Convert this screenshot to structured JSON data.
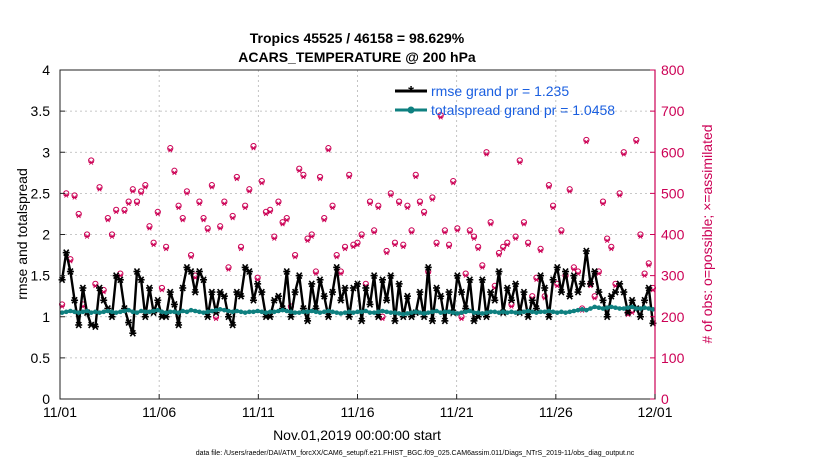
{
  "chart_data": {
    "type": "line",
    "title": "Tropics 45525 / 46158 = 98.629%",
    "subtitle": "ACARS_TEMPERATURE @ 200 hPa",
    "xlabel": "Nov.01,2019 00:00:00 start",
    "ylabel_left": "rmse and totalspread",
    "ylabel_right": "# of obs: o=possible; ×=assimilated",
    "x_ticks": [
      "11/01",
      "11/06",
      "11/11",
      "11/16",
      "11/21",
      "11/26",
      "12/01"
    ],
    "x_tick_days": [
      0,
      5,
      10,
      15,
      20,
      25,
      30
    ],
    "xlim": [
      0,
      30
    ],
    "ylim_left": [
      0,
      4
    ],
    "y_ticks_left": [
      "0",
      "0.5",
      "1",
      "1.5",
      "2",
      "2.5",
      "3",
      "3.5",
      "4"
    ],
    "ylim_right": [
      0,
      800
    ],
    "y_ticks_right": [
      "0",
      "100",
      "200",
      "300",
      "400",
      "500",
      "600",
      "700",
      "800"
    ],
    "legend_position": "top-right",
    "series": [
      {
        "name": "rmse grand pr = 1.235",
        "color": "#000000",
        "marker": "asterisk",
        "values": [
          1.45,
          1.78,
          1.55,
          1.2,
          0.9,
          1.35,
          1.05,
          0.9,
          0.88,
          1.35,
          1.2,
          1.1,
          1.0,
          1.5,
          1.45,
          1.1,
          0.93,
          0.8,
          1.55,
          1.45,
          1.0,
          1.35,
          1.05,
          1.2,
          1.0,
          1.0,
          1.3,
          1.15,
          0.9,
          1.35,
          1.6,
          1.55,
          1.3,
          1.55,
          1.45,
          1.0,
          1.3,
          1.05,
          1.3,
          1.25,
          1.0,
          0.9,
          1.3,
          1.25,
          1.6,
          1.55,
          1.2,
          1.4,
          1.3,
          1.0,
          1.0,
          1.2,
          1.25,
          1.1,
          1.55,
          1.0,
          1.3,
          1.5,
          1.1,
          0.95,
          1.4,
          1.1,
          1.45,
          1.25,
          1.0,
          1.3,
          1.6,
          1.2,
          1.35,
          1.0,
          1.35,
          1.4,
          0.95,
          1.35,
          1.15,
          1.5,
          1.0,
          1.45,
          1.2,
          1.5,
          0.95,
          1.4,
          1.0,
          1.25,
          1.0,
          1.05,
          1.3,
          1.0,
          1.6,
          0.95,
          1.35,
          1.25,
          0.95,
          1.3,
          1.05,
          1.5,
          1.3,
          1.1,
          1.45,
          0.95,
          1.0,
          1.45,
          1.0,
          1.3,
          1.2,
          1.55,
          1.05,
          1.35,
          1.2,
          1.4,
          1.05,
          1.3,
          1.0,
          1.2,
          1.1,
          1.5,
          1.35,
          1.0,
          1.45,
          1.6,
          1.3,
          1.55,
          1.25,
          1.5,
          1.3,
          1.4,
          1.8,
          1.4,
          1.55,
          1.3,
          1.2,
          1.0,
          1.25,
          1.3,
          1.4,
          1.3,
          1.05,
          1.2,
          1.1,
          1.0,
          1.2,
          1.35,
          0.92
        ]
      },
      {
        "name": "totalspread grand pr = 1.0458",
        "color": "#0f8080",
        "marker": "dot",
        "values": [
          1.05,
          1.06,
          1.07,
          1.06,
          1.05,
          1.06,
          1.07,
          1.05,
          1.06,
          1.05,
          1.06,
          1.07,
          1.06,
          1.05,
          1.06,
          1.07,
          1.08,
          1.06,
          1.05,
          1.07,
          1.06,
          1.06,
          1.07,
          1.08,
          1.06,
          1.05,
          1.06,
          1.06,
          1.05,
          1.07,
          1.06,
          1.08,
          1.07,
          1.06,
          1.05,
          1.06,
          1.07,
          1.08,
          1.09,
          1.08,
          1.07,
          1.06,
          1.07,
          1.06,
          1.05,
          1.06,
          1.06,
          1.07,
          1.06,
          1.05,
          1.06,
          1.06,
          1.07,
          1.08,
          1.07,
          1.06,
          1.05,
          1.05,
          1.06,
          1.06,
          1.07,
          1.06,
          1.05,
          1.06,
          1.07,
          1.06,
          1.05,
          1.04,
          1.05,
          1.06,
          1.05,
          1.06,
          1.06,
          1.07,
          1.05,
          1.05,
          1.06,
          1.07,
          1.06,
          1.05,
          1.05,
          1.04,
          1.03,
          1.04,
          1.05,
          1.06,
          1.05,
          1.04,
          1.05,
          1.06,
          1.07,
          1.05,
          1.06,
          1.06,
          1.05,
          1.04,
          1.05,
          1.06,
          1.07,
          1.05,
          1.05,
          1.04,
          1.05,
          1.06,
          1.06,
          1.05,
          1.06,
          1.05,
          1.06,
          1.05,
          1.05,
          1.06,
          1.07,
          1.06,
          1.05,
          1.06,
          1.06,
          1.07,
          1.06,
          1.05,
          1.06,
          1.05,
          1.06,
          1.07,
          1.08,
          1.09,
          1.08,
          1.1,
          1.12,
          1.11,
          1.1,
          1.11,
          1.12,
          1.11,
          1.1,
          1.1,
          1.11,
          1.12,
          1.1,
          1.1,
          1.11,
          1.1,
          1.09
        ]
      }
    ],
    "obs_series": [
      {
        "name": "possible",
        "marker": "o",
        "color": "#cc0055",
        "axis": "right",
        "values": [
          230,
          500,
          340,
          495,
          450,
          230,
          400,
          580,
          280,
          515,
          265,
          440,
          400,
          460,
          305,
          460,
          480,
          510,
          480,
          505,
          520,
          420,
          380,
          455,
          270,
          370,
          610,
          555,
          470,
          440,
          505,
          350,
          300,
          480,
          440,
          415,
          520,
          200,
          420,
          480,
          320,
          445,
          540,
          370,
          470,
          510,
          615,
          295,
          530,
          455,
          460,
          395,
          480,
          430,
          440,
          225,
          350,
          560,
          545,
          390,
          400,
          310,
          540,
          440,
          610,
          470,
          350,
          310,
          370,
          545,
          375,
          380,
          400,
          280,
          480,
          410,
          470,
          200,
          360,
          500,
          380,
          480,
          375,
          470,
          410,
          545,
          480,
          455,
          310,
          490,
          380,
          690,
          410,
          375,
          530,
          415,
          200,
          305,
          410,
          395,
          370,
          325,
          600,
          430,
          275,
          355,
          370,
          380,
          230,
          395,
          580,
          430,
          380,
          250,
          295,
          365,
          250,
          520,
          470,
          280,
          410,
          300,
          510,
          320,
          310,
          220,
          630,
          280,
          250,
          310,
          480,
          390,
          370,
          280,
          500,
          600,
          210,
          215,
          630,
          400,
          305,
          330,
          270
        ]
      },
      {
        "name": "assimilated",
        "marker": "x",
        "color": "#cc0055",
        "axis": "right",
        "values": [
          225,
          495,
          335,
          490,
          445,
          225,
          395,
          575,
          275,
          510,
          260,
          435,
          395,
          455,
          300,
          455,
          475,
          505,
          475,
          500,
          515,
          415,
          375,
          450,
          265,
          365,
          605,
          550,
          465,
          435,
          500,
          345,
          295,
          475,
          435,
          410,
          515,
          195,
          415,
          475,
          315,
          440,
          535,
          365,
          465,
          505,
          610,
          290,
          525,
          450,
          455,
          390,
          475,
          425,
          435,
          220,
          345,
          555,
          540,
          385,
          395,
          305,
          535,
          435,
          605,
          465,
          345,
          305,
          365,
          540,
          370,
          375,
          395,
          275,
          475,
          405,
          465,
          195,
          355,
          495,
          375,
          475,
          370,
          465,
          405,
          540,
          475,
          450,
          305,
          485,
          375,
          685,
          405,
          370,
          525,
          410,
          195,
          300,
          405,
          390,
          365,
          320,
          595,
          425,
          270,
          350,
          365,
          375,
          225,
          390,
          575,
          425,
          375,
          245,
          290,
          360,
          245,
          515,
          465,
          275,
          405,
          295,
          505,
          315,
          305,
          215,
          625,
          275,
          245,
          305,
          475,
          385,
          365,
          275,
          495,
          595,
          205,
          210,
          625,
          395,
          300,
          325,
          265
        ]
      }
    ]
  },
  "footer": {
    "data_file": "data file: /Users/raeder/DAI/ATM_forcXX/CAM6_setup/f.e21.FHIST_BGC.f09_025.CAM6assim.011/Diags_NTrS_2019-11/obs_diag_output.nc"
  }
}
